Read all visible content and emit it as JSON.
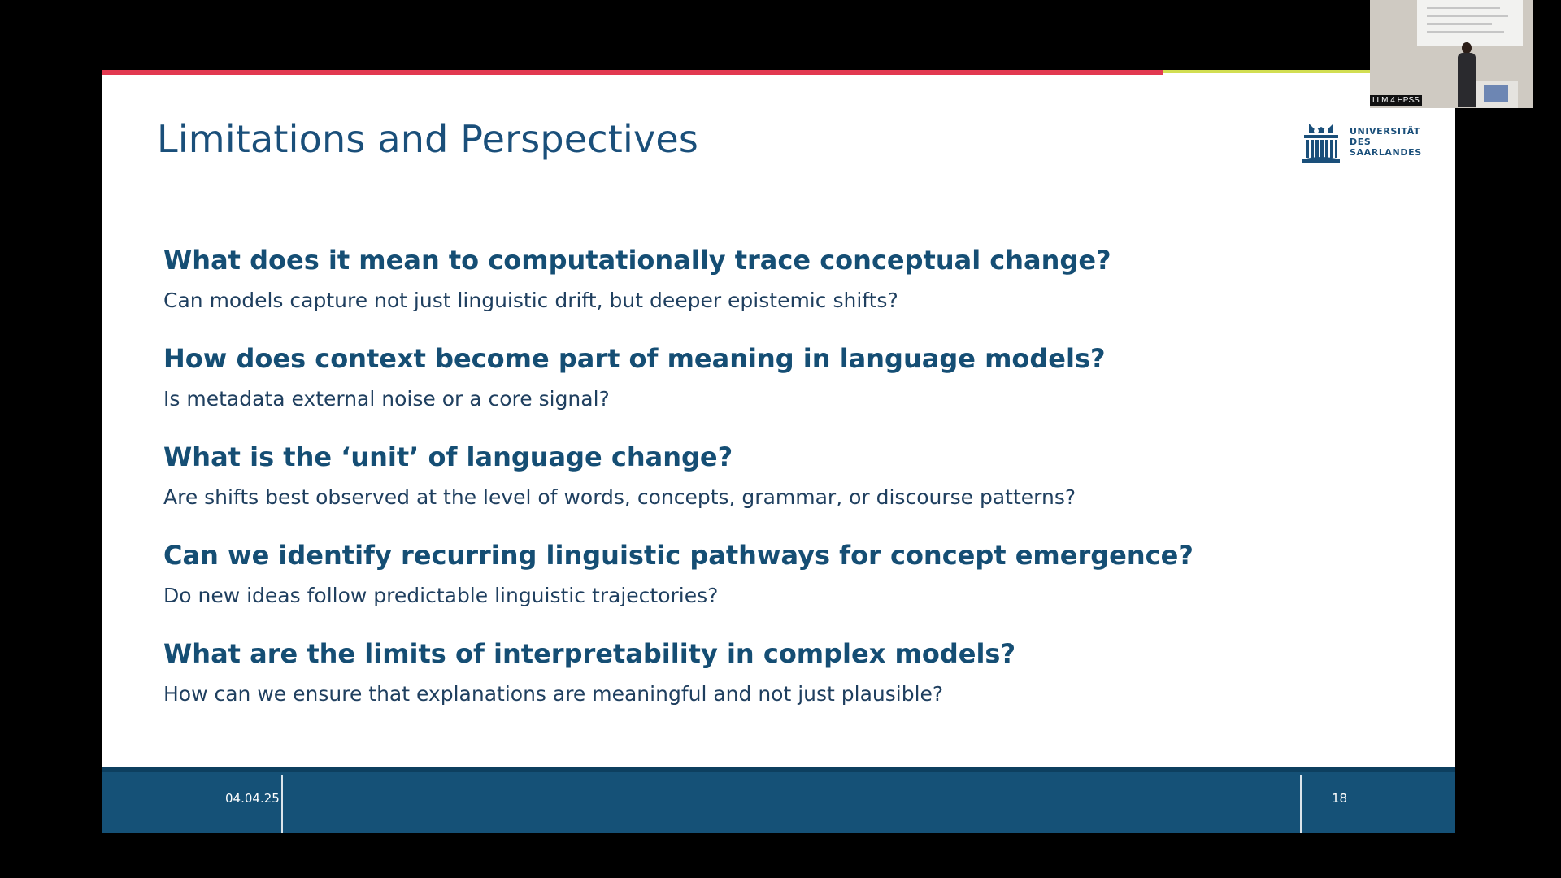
{
  "slide": {
    "title": "Limitations and Perspectives",
    "logo": {
      "line1": "UNIVERSITÄT",
      "line2": "DES",
      "line3": "SAARLANDES"
    },
    "items": [
      {
        "question": "What does it mean to computationally trace conceptual change?",
        "answer": "Can models capture not just linguistic drift, but deeper epistemic shifts?"
      },
      {
        "question": "How does context become part of meaning in language models?",
        "answer": "Is metadata external noise or a core signal?"
      },
      {
        "question": "What is the ‘unit’ of language change?",
        "answer": "Are shifts best observed at the level of words, concepts, grammar, or discourse patterns?"
      },
      {
        "question": "Can we identify recurring linguistic pathways for concept emergence?",
        "answer": "Do new ideas follow predictable linguistic trajectories?"
      },
      {
        "question": "What are the limits of interpretability in complex models?",
        "answer": "How can we ensure that explanations are meaningful and not just plausible?"
      }
    ],
    "footer": {
      "date": "04.04.25",
      "page": "18"
    }
  },
  "camera": {
    "label": "LLM 4 HPSS"
  },
  "colors": {
    "accent_red": "#e23950",
    "accent_lime": "#d2de52",
    "brand_blue": "#155177",
    "title_blue": "#1a4f7a"
  }
}
